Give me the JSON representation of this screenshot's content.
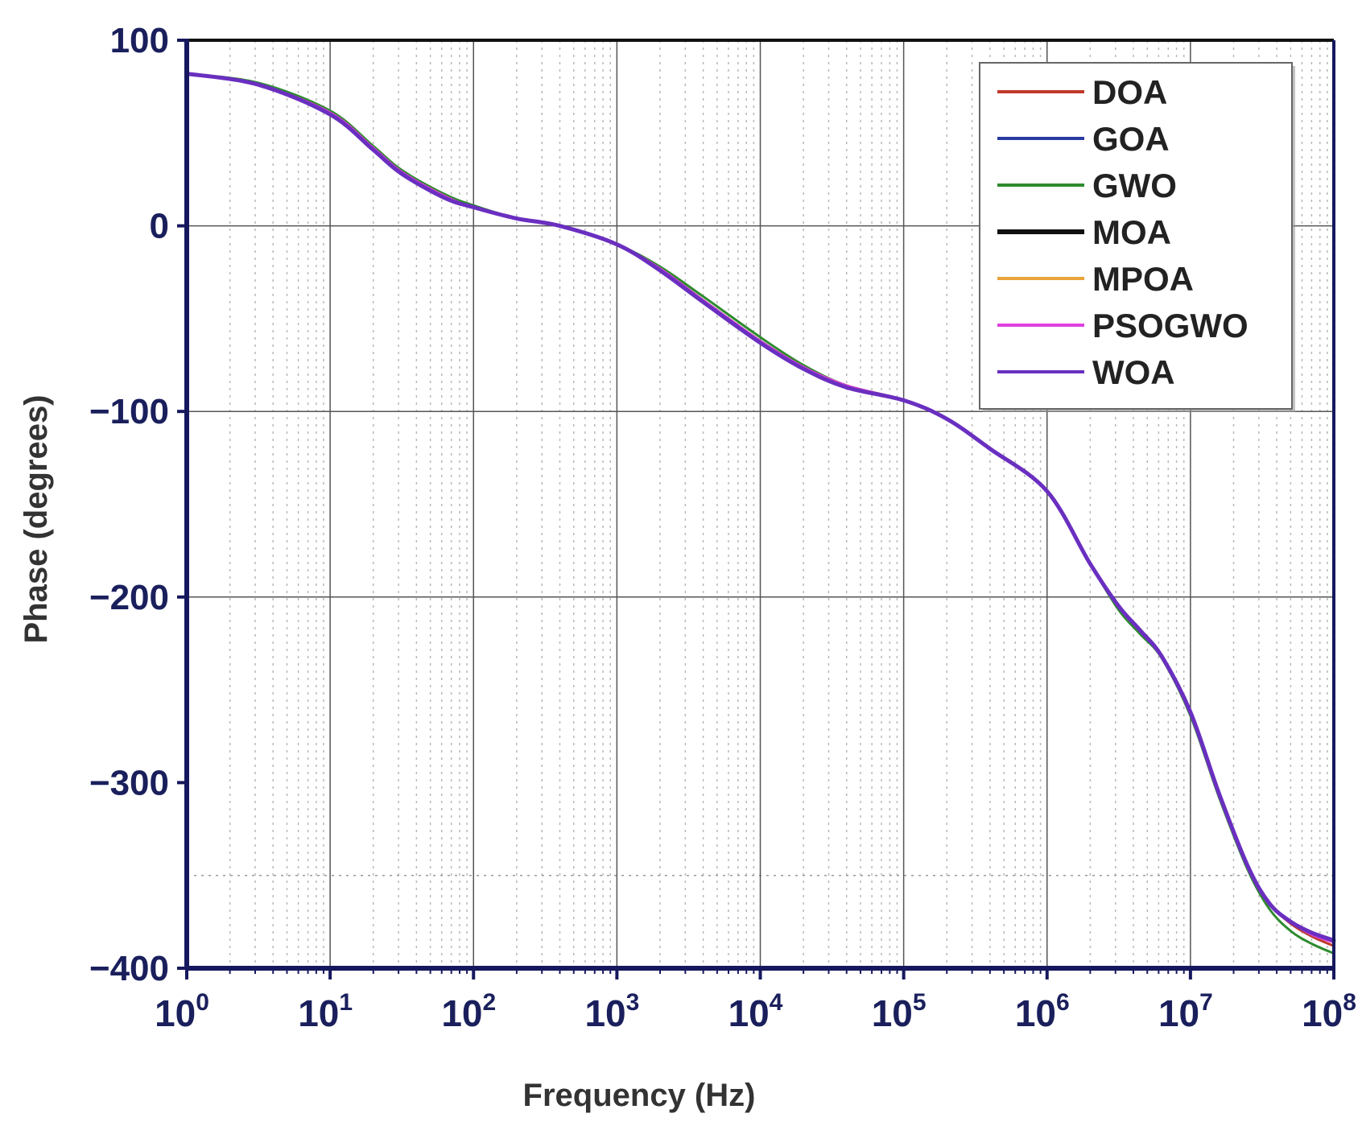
{
  "chart_data": {
    "type": "line",
    "title": "",
    "xlabel": "Frequency (Hz)",
    "ylabel": "Phase (degrees)",
    "xscale": "log",
    "xlim": [
      1,
      100000000
    ],
    "ylim": [
      -400,
      100
    ],
    "grid": true,
    "legend_position": "top-right",
    "x_ticks": [
      {
        "base": "10",
        "exp": "0"
      },
      {
        "base": "10",
        "exp": "1"
      },
      {
        "base": "10",
        "exp": "2"
      },
      {
        "base": "10",
        "exp": "3"
      },
      {
        "base": "10",
        "exp": "4"
      },
      {
        "base": "10",
        "exp": "5"
      },
      {
        "base": "10",
        "exp": "6"
      },
      {
        "base": "10",
        "exp": "7"
      },
      {
        "base": "10",
        "exp": "8"
      }
    ],
    "y_ticks": [
      "100",
      "0",
      "-100",
      "-200",
      "-300",
      "-400"
    ],
    "x_log10": [
      0,
      0.5,
      1,
      1.3,
      1.5,
      1.8,
      2,
      2.3,
      2.6,
      3,
      3.3,
      3.6,
      4,
      4.3,
      4.6,
      5,
      5.3,
      5.6,
      6,
      6.3,
      6.5,
      6.65,
      6.8,
      7,
      7.2,
      7.4,
      7.55,
      7.7,
      7.85,
      8
    ],
    "series": [
      {
        "name": "DOA",
        "color": "#c0392b",
        "width": 3,
        "values": [
          82,
          76,
          61,
          42,
          29,
          16,
          10,
          4,
          0,
          -10,
          -23,
          -40,
          -62,
          -76,
          -86,
          -94,
          -104,
          -120,
          -143,
          -182,
          -205,
          -218,
          -232,
          -262,
          -306,
          -345,
          -365,
          -376,
          -383,
          -388
        ]
      },
      {
        "name": "GOA",
        "color": "#2b3aa0",
        "width": 3,
        "values": [
          82,
          76,
          60,
          41,
          28,
          15,
          10,
          4,
          0,
          -10,
          -23,
          -40,
          -62,
          -76,
          -86,
          -94,
          -104,
          -120,
          -143,
          -182,
          -206,
          -219,
          -232,
          -263,
          -307,
          -345,
          -365,
          -375,
          -382,
          -386
        ]
      },
      {
        "name": "GWO",
        "color": "#2e8b2e",
        "width": 3,
        "values": [
          82,
          77,
          62,
          43,
          30,
          17,
          11,
          4,
          0,
          -10,
          -22,
          -38,
          -60,
          -75,
          -86,
          -94,
          -104,
          -120,
          -143,
          -182,
          -207,
          -220,
          -233,
          -264,
          -308,
          -347,
          -368,
          -380,
          -387,
          -392
        ]
      },
      {
        "name": "MOA",
        "color": "#111111",
        "width": 3,
        "values": [
          82,
          76,
          61,
          42,
          29,
          16,
          10,
          4,
          0,
          -10,
          -23,
          -40,
          -62,
          -76,
          -86,
          -94,
          -104,
          -120,
          -143,
          -182,
          -205,
          -218,
          -232,
          -262,
          -306,
          -345,
          -365,
          -375,
          -382,
          -386
        ]
      },
      {
        "name": "MPOA",
        "color": "#e8a33a",
        "width": 3,
        "values": [
          82,
          76,
          61,
          42,
          29,
          16,
          10,
          4,
          0,
          -10,
          -23,
          -40,
          -62,
          -76,
          -86,
          -94,
          -104,
          -120,
          -143,
          -182,
          -205,
          -218,
          -232,
          -262,
          -306,
          -345,
          -365,
          -375,
          -382,
          -386
        ]
      },
      {
        "name": "PSOGWO",
        "color": "#e040e0",
        "width": 3,
        "values": [
          82,
          76,
          61,
          42,
          29,
          16,
          10,
          4,
          0,
          -10,
          -23,
          -40,
          -62,
          -76,
          -86,
          -94,
          -104,
          -120,
          -143,
          -182,
          -205,
          -218,
          -232,
          -262,
          -306,
          -345,
          -365,
          -375,
          -382,
          -386
        ]
      },
      {
        "name": "WOA",
        "color": "#6a2fc0",
        "width": 5,
        "values": [
          82,
          76,
          60,
          41,
          28,
          15,
          10,
          4,
          0,
          -10,
          -24,
          -41,
          -63,
          -77,
          -87,
          -94,
          -104,
          -120,
          -143,
          -182,
          -205,
          -218,
          -232,
          -262,
          -306,
          -345,
          -365,
          -375,
          -381,
          -385
        ]
      }
    ]
  }
}
